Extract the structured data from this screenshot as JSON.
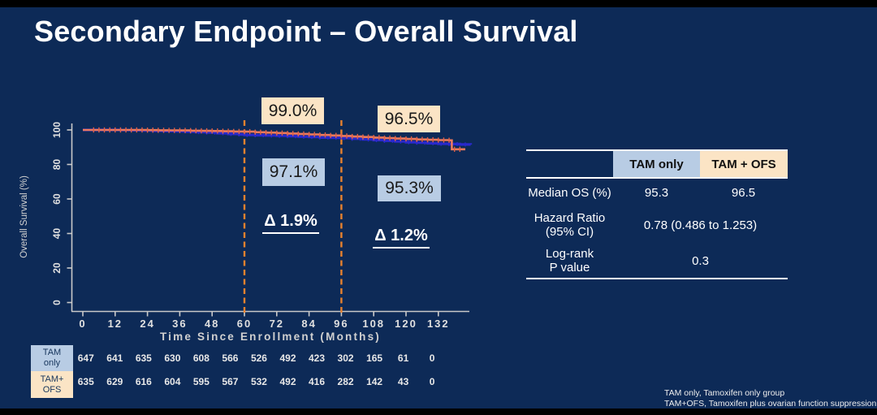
{
  "slide": {
    "title": "Secondary Endpoint – Overall Survival",
    "colors": {
      "background": "#0D2A57",
      "letterbox": "#000000",
      "cream": "#FBE4C5",
      "light_blue": "#B8CCE4",
      "orange_curve": "#ED7A5E",
      "orange_censor": "#DD6047",
      "blue_curve": "#2929CC",
      "dashed_line": "#E8822E",
      "axis": "#C9C9C9",
      "tick_label": "#E0E0E0",
      "axis_title": "#D0D0D0"
    }
  },
  "chart_data": {
    "type": "line",
    "subtype": "kaplan-meier-step",
    "title": "",
    "xlabel": "Time Since Enrollment (Months)",
    "ylabel": "Overall Survival (%)",
    "xticks": [
      0,
      12,
      24,
      36,
      48,
      60,
      72,
      84,
      96,
      108,
      120,
      132
    ],
    "yticks": [
      0,
      20,
      40,
      60,
      80,
      100
    ],
    "xlim": [
      0,
      148
    ],
    "ylim": [
      0,
      105
    ],
    "grid": false,
    "legend_position": "none",
    "reference_lines_x": [
      60,
      96
    ],
    "series": [
      {
        "name": "TAM only",
        "color": "#2929CC",
        "censor_ticks": {
          "start": 40,
          "end": 144,
          "step": 3
        },
        "points": [
          [
            0,
            100
          ],
          [
            10,
            100
          ],
          [
            14,
            99.9
          ],
          [
            18,
            99.8
          ],
          [
            22,
            99.65
          ],
          [
            26,
            99.5
          ],
          [
            30,
            99.35
          ],
          [
            34,
            99.2
          ],
          [
            38,
            99.0
          ],
          [
            42,
            98.75
          ],
          [
            46,
            98.5
          ],
          [
            50,
            98.1
          ],
          [
            54,
            97.7
          ],
          [
            58,
            97.4
          ],
          [
            60,
            97.1
          ],
          [
            64,
            96.95
          ],
          [
            68,
            96.8
          ],
          [
            72,
            96.6
          ],
          [
            76,
            96.4
          ],
          [
            80,
            96.1
          ],
          [
            84,
            95.9
          ],
          [
            88,
            95.6
          ],
          [
            92,
            95.45
          ],
          [
            96,
            95.3
          ],
          [
            100,
            94.9
          ],
          [
            104,
            94.5
          ],
          [
            108,
            94.1
          ],
          [
            112,
            93.7
          ],
          [
            116,
            93.3
          ],
          [
            120,
            92.9
          ],
          [
            124,
            92.6
          ],
          [
            128,
            92.3
          ],
          [
            132,
            92.0
          ],
          [
            136,
            91.8
          ],
          [
            140,
            91.6
          ],
          [
            144,
            91.5
          ]
        ]
      },
      {
        "name": "TAM + OFS",
        "color": "#ED7A5E",
        "censor_ticks": {
          "start": 4,
          "end": 140,
          "step": 2
        },
        "points": [
          [
            0,
            100
          ],
          [
            20,
            100
          ],
          [
            24,
            99.9
          ],
          [
            28,
            99.8
          ],
          [
            32,
            99.75
          ],
          [
            36,
            99.7
          ],
          [
            40,
            99.6
          ],
          [
            44,
            99.5
          ],
          [
            48,
            99.4
          ],
          [
            52,
            99.25
          ],
          [
            56,
            99.1
          ],
          [
            60,
            99.0
          ],
          [
            64,
            98.7
          ],
          [
            68,
            98.45
          ],
          [
            72,
            98.2
          ],
          [
            76,
            97.95
          ],
          [
            80,
            97.7
          ],
          [
            84,
            97.4
          ],
          [
            88,
            97.1
          ],
          [
            92,
            96.8
          ],
          [
            96,
            96.5
          ],
          [
            100,
            96.2
          ],
          [
            104,
            95.9
          ],
          [
            108,
            95.6
          ],
          [
            112,
            95.3
          ],
          [
            116,
            95.0
          ],
          [
            120,
            94.8
          ],
          [
            124,
            94.5
          ],
          [
            128,
            94.3
          ],
          [
            132,
            94.1
          ],
          [
            136,
            94.0
          ],
          [
            137,
            88.8
          ],
          [
            142,
            88.8
          ]
        ]
      }
    ],
    "annotations": {
      "tam_ofs_60": "99.0%",
      "tam_ofs_96": "96.5%",
      "tam_only_60": "97.1%",
      "tam_only_96": "95.3%",
      "delta_60": "Δ 1.9%",
      "delta_96": "Δ 1.2%"
    }
  },
  "risk_table": {
    "rows": [
      {
        "label_line1": "TAM",
        "label_line2": "only",
        "style": "light_blue",
        "values": [
          "647",
          "641",
          "635",
          "630",
          "608",
          "566",
          "526",
          "492",
          "423",
          "302",
          "165",
          "61",
          "0"
        ]
      },
      {
        "label_line1": "TAM+",
        "label_line2": "OFS",
        "style": "cream",
        "values": [
          "635",
          "629",
          "616",
          "604",
          "595",
          "567",
          "532",
          "492",
          "416",
          "282",
          "142",
          "43",
          "0"
        ]
      }
    ]
  },
  "stats_table": {
    "col_headers": [
      "TAM only",
      "TAM + OFS"
    ],
    "rows": [
      {
        "label_line1": "Median OS (%)",
        "label_line2": "",
        "values": [
          "95.3",
          "96.5"
        ]
      },
      {
        "label_line1": "Hazard Ratio",
        "label_line2": "(95% CI)",
        "span_value": "0.78 (0.486 to 1.253)"
      },
      {
        "label_line1": "Log-rank",
        "label_line2": "P value",
        "span_value": "0.3"
      }
    ]
  },
  "footnotes": [
    "TAM only, Tamoxifen only group",
    "TAM+OFS, Tamoxifen plus ovarian function suppression group"
  ]
}
